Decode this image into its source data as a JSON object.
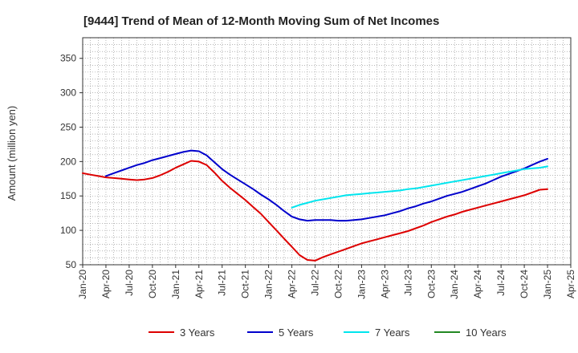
{
  "chart_data": {
    "type": "line",
    "title": "[9444]  Trend of Mean of 12-Month Moving Sum of Net Incomes",
    "xlabel": "",
    "ylabel": "Amount (million yen)",
    "ylim": [
      50,
      380
    ],
    "yticks": [
      50,
      100,
      150,
      200,
      250,
      300,
      350
    ],
    "xticks": [
      "Jan-20",
      "Apr-20",
      "Jul-20",
      "Oct-20",
      "Jan-21",
      "Apr-21",
      "Jul-21",
      "Oct-21",
      "Jan-22",
      "Apr-22",
      "Jul-22",
      "Oct-22",
      "Jan-23",
      "Apr-23",
      "Jul-23",
      "Oct-23",
      "Jan-24",
      "Apr-24",
      "Jul-24",
      "Oct-24",
      "Jan-25",
      "Apr-25"
    ],
    "grid": true,
    "legend_position": "bottom",
    "series": [
      {
        "name": "3 Years",
        "color": "#dd0000",
        "x": [
          "2020-01",
          "2020-02",
          "2020-03",
          "2020-04",
          "2020-05",
          "2020-06",
          "2020-07",
          "2020-08",
          "2020-09",
          "2020-10",
          "2020-11",
          "2020-12",
          "2021-01",
          "2021-02",
          "2021-03",
          "2021-04",
          "2021-05",
          "2021-06",
          "2021-07",
          "2021-08",
          "2021-09",
          "2021-10",
          "2021-11",
          "2021-12",
          "2022-01",
          "2022-02",
          "2022-03",
          "2022-04",
          "2022-05",
          "2022-06",
          "2022-07",
          "2022-08",
          "2022-09",
          "2022-10",
          "2022-11",
          "2022-12",
          "2023-01",
          "2023-02",
          "2023-03",
          "2023-04",
          "2023-05",
          "2023-06",
          "2023-07",
          "2023-08",
          "2023-09",
          "2023-10",
          "2023-11",
          "2023-12",
          "2024-01",
          "2024-02",
          "2024-03",
          "2024-04",
          "2024-05",
          "2024-06",
          "2024-07",
          "2024-08",
          "2024-09",
          "2024-10",
          "2024-11",
          "2024-12",
          "2025-01"
        ],
        "values": [
          183,
          181,
          179,
          177,
          176,
          175,
          174,
          173,
          174,
          176,
          180,
          185,
          191,
          196,
          201,
          200,
          195,
          184,
          172,
          162,
          153,
          144,
          134,
          124,
          112,
          100,
          88,
          76,
          64,
          57,
          56,
          61,
          65,
          69,
          73,
          77,
          81,
          84,
          87,
          90,
          93,
          96,
          99,
          103,
          107,
          112,
          116,
          120,
          123,
          127,
          130,
          133,
          136,
          139,
          142,
          145,
          148,
          151,
          155,
          159,
          160
        ]
      },
      {
        "name": "5 Years",
        "color": "#0000cc",
        "x": [
          "2020-04",
          "2020-05",
          "2020-06",
          "2020-07",
          "2020-08",
          "2020-09",
          "2020-10",
          "2020-11",
          "2020-12",
          "2021-01",
          "2021-02",
          "2021-03",
          "2021-04",
          "2021-05",
          "2021-06",
          "2021-07",
          "2021-08",
          "2021-09",
          "2021-10",
          "2021-11",
          "2021-12",
          "2022-01",
          "2022-02",
          "2022-03",
          "2022-04",
          "2022-05",
          "2022-06",
          "2022-07",
          "2022-08",
          "2022-09",
          "2022-10",
          "2022-11",
          "2022-12",
          "2023-01",
          "2023-02",
          "2023-03",
          "2023-04",
          "2023-05",
          "2023-06",
          "2023-07",
          "2023-08",
          "2023-09",
          "2023-10",
          "2023-11",
          "2023-12",
          "2024-01",
          "2024-02",
          "2024-03",
          "2024-04",
          "2024-05",
          "2024-06",
          "2024-07",
          "2024-08",
          "2024-09",
          "2024-10",
          "2024-11",
          "2024-12",
          "2025-01"
        ],
        "values": [
          179,
          183,
          187,
          191,
          195,
          198,
          202,
          205,
          208,
          211,
          214,
          216,
          215,
          209,
          199,
          189,
          181,
          174,
          167,
          160,
          152,
          145,
          137,
          128,
          120,
          116,
          114,
          115,
          115,
          115,
          114,
          114,
          115,
          116,
          118,
          120,
          122,
          125,
          128,
          132,
          135,
          139,
          142,
          146,
          150,
          153,
          156,
          160,
          164,
          168,
          173,
          178,
          182,
          186,
          190,
          195,
          200,
          204
        ]
      },
      {
        "name": "7 Years",
        "color": "#00e5ee",
        "x": [
          "2022-04",
          "2022-05",
          "2022-06",
          "2022-07",
          "2022-08",
          "2022-09",
          "2022-10",
          "2022-11",
          "2022-12",
          "2023-01",
          "2023-02",
          "2023-03",
          "2023-04",
          "2023-05",
          "2023-06",
          "2023-07",
          "2023-08",
          "2023-09",
          "2023-10",
          "2023-11",
          "2023-12",
          "2024-01",
          "2024-02",
          "2024-03",
          "2024-04",
          "2024-05",
          "2024-06",
          "2024-07",
          "2024-08",
          "2024-09",
          "2024-10",
          "2024-11",
          "2024-12",
          "2025-01"
        ],
        "values": [
          133,
          137,
          140,
          143,
          145,
          147,
          149,
          151,
          152,
          153,
          154,
          155,
          156,
          157,
          158,
          160,
          161,
          163,
          165,
          167,
          169,
          171,
          173,
          175,
          177,
          179,
          181,
          183,
          185,
          187,
          189,
          190,
          191,
          193
        ]
      },
      {
        "name": "10 Years",
        "color": "#228822",
        "x": [],
        "values": []
      }
    ]
  }
}
